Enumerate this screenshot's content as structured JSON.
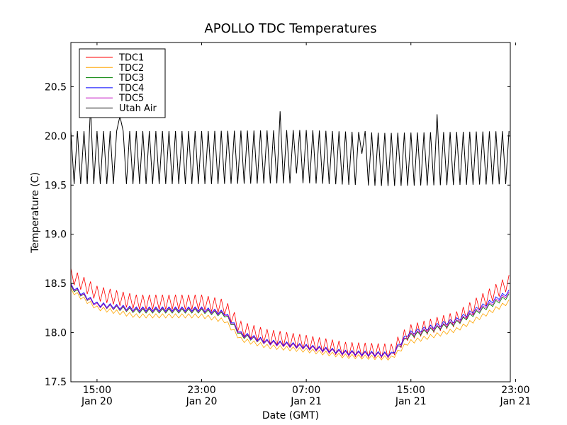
{
  "chart_data": {
    "type": "line",
    "title": "APOLLO TDC Temperatures",
    "xlabel": "Date (GMT)",
    "ylabel": "Temperature (C)",
    "ylim": [
      17.5,
      20.95
    ],
    "y_ticks": [
      "17.5",
      "18.0",
      "18.5",
      "19.0",
      "19.5",
      "20.0",
      "20.5"
    ],
    "x_range_hours": [
      0,
      33.6
    ],
    "x_ticks": [
      {
        "hour": 2.0,
        "time": "15:00",
        "date": "Jan 20"
      },
      {
        "hour": 10.0,
        "time": "23:00",
        "date": "Jan 20"
      },
      {
        "hour": 18.0,
        "time": "07:00",
        "date": "Jan 21"
      },
      {
        "hour": 26.0,
        "time": "15:00",
        "date": "Jan 21"
      },
      {
        "hour": 34.0,
        "time": "23:00",
        "date": "Jan 21"
      }
    ],
    "legend_position": "top-left",
    "oscillation_period_hours": 0.5,
    "series": [
      {
        "name": "TDC1",
        "color": "#ff0000",
        "amplitude": 0.075,
        "baseline": [
          [
            0,
            18.58
          ],
          [
            2.0,
            18.4
          ],
          [
            5.0,
            18.31
          ],
          [
            10.0,
            18.31
          ],
          [
            11.8,
            18.26
          ],
          [
            13.0,
            18.04
          ],
          [
            15.0,
            17.96
          ],
          [
            18.0,
            17.9
          ],
          [
            21.0,
            17.83
          ],
          [
            24.5,
            17.81
          ],
          [
            25.8,
            18.0
          ],
          [
            29.5,
            18.14
          ],
          [
            33.6,
            18.52
          ]
        ]
      },
      {
        "name": "TDC2",
        "color": "#ffa500",
        "amplitude": 0.022,
        "baseline": [
          [
            0,
            18.43
          ],
          [
            2.0,
            18.25
          ],
          [
            5.0,
            18.17
          ],
          [
            10.0,
            18.17
          ],
          [
            11.8,
            18.12
          ],
          [
            13.0,
            17.93
          ],
          [
            15.0,
            17.86
          ],
          [
            18.0,
            17.82
          ],
          [
            21.0,
            17.76
          ],
          [
            24.5,
            17.74
          ],
          [
            25.8,
            17.9
          ],
          [
            29.5,
            18.03
          ],
          [
            33.6,
            18.32
          ]
        ]
      },
      {
        "name": "TDC3",
        "color": "#008000",
        "amplitude": 0.022,
        "baseline": [
          [
            0,
            18.46
          ],
          [
            2.0,
            18.28
          ],
          [
            5.0,
            18.22
          ],
          [
            10.0,
            18.22
          ],
          [
            11.8,
            18.18
          ],
          [
            13.0,
            17.97
          ],
          [
            15.0,
            17.9
          ],
          [
            18.0,
            17.85
          ],
          [
            21.0,
            17.79
          ],
          [
            24.5,
            17.77
          ],
          [
            25.8,
            17.96
          ],
          [
            29.5,
            18.1
          ],
          [
            33.6,
            18.38
          ]
        ]
      },
      {
        "name": "TDC4",
        "color": "#0000ff",
        "amplitude": 0.022,
        "baseline": [
          [
            0,
            18.48
          ],
          [
            2.0,
            18.29
          ],
          [
            5.0,
            18.24
          ],
          [
            10.0,
            18.24
          ],
          [
            11.8,
            18.2
          ],
          [
            13.0,
            17.99
          ],
          [
            15.0,
            17.91
          ],
          [
            18.0,
            17.86
          ],
          [
            21.0,
            17.8
          ],
          [
            24.5,
            17.78
          ],
          [
            25.8,
            17.99
          ],
          [
            29.5,
            18.13
          ],
          [
            33.6,
            18.42
          ]
        ]
      },
      {
        "name": "TDC5",
        "color": "#bf00bf",
        "amplitude": 0.022,
        "baseline": [
          [
            0,
            18.47
          ],
          [
            2.0,
            18.28
          ],
          [
            5.0,
            18.23
          ],
          [
            10.0,
            18.23
          ],
          [
            11.8,
            18.19
          ],
          [
            13.0,
            17.98
          ],
          [
            15.0,
            17.9
          ],
          [
            18.0,
            17.85
          ],
          [
            21.0,
            17.79
          ],
          [
            24.5,
            17.77
          ],
          [
            25.8,
            17.97
          ],
          [
            29.5,
            18.11
          ],
          [
            33.6,
            18.4
          ]
        ]
      },
      {
        "name": "Utah Air",
        "color": "#000000",
        "amplitude": 0.27,
        "baseline": [
          [
            0,
            19.78
          ],
          [
            10.0,
            19.78
          ],
          [
            18.0,
            19.79
          ],
          [
            24.0,
            19.76
          ],
          [
            33.6,
            19.78
          ]
        ],
        "spikes": [
          [
            1.62,
            20.3
          ],
          [
            3.72,
            20.2
          ],
          [
            15.95,
            20.25
          ],
          [
            17.2,
            19.62
          ],
          [
            22.15,
            19.82
          ],
          [
            22.58,
            20.05
          ],
          [
            28.12,
            20.22
          ]
        ]
      }
    ]
  }
}
